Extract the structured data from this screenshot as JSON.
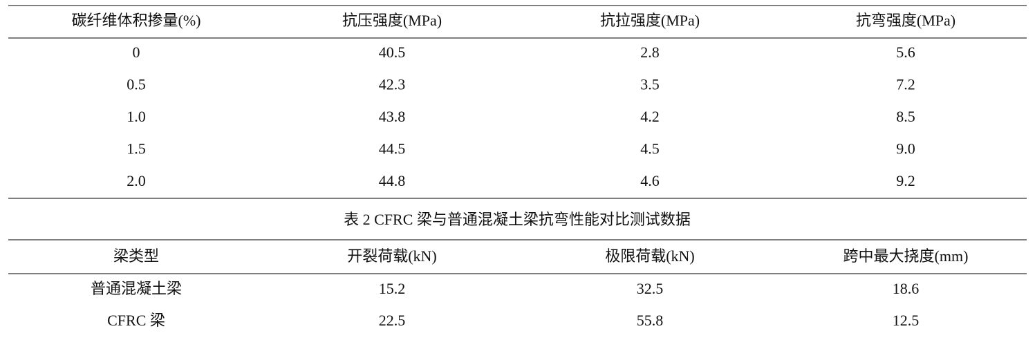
{
  "table1": {
    "header": [
      "碳纤维体积掺量(%)",
      "抗压强度(MPa)",
      "抗拉强度(MPa)",
      "抗弯强度(MPa)"
    ],
    "rows": [
      [
        "0",
        "40.5",
        "2.8",
        "5.6"
      ],
      [
        "0.5",
        "42.3",
        "3.5",
        "7.2"
      ],
      [
        "1.0",
        "43.8",
        "4.2",
        "8.5"
      ],
      [
        "1.5",
        "44.5",
        "4.5",
        "9.0"
      ],
      [
        "2.0",
        "44.8",
        "4.6",
        "9.2"
      ]
    ]
  },
  "table2": {
    "caption": "表 2 CFRC 梁与普通混凝土梁抗弯性能对比测试数据",
    "header": [
      "梁类型",
      "开裂荷载(kN)",
      "极限荷载(kN)",
      "跨中最大挠度(mm)"
    ],
    "rows": [
      [
        "普通混凝土梁",
        "15.2",
        "32.5",
        "18.6"
      ],
      [
        "CFRC 梁",
        "22.5",
        "55.8",
        "12.5"
      ]
    ]
  }
}
